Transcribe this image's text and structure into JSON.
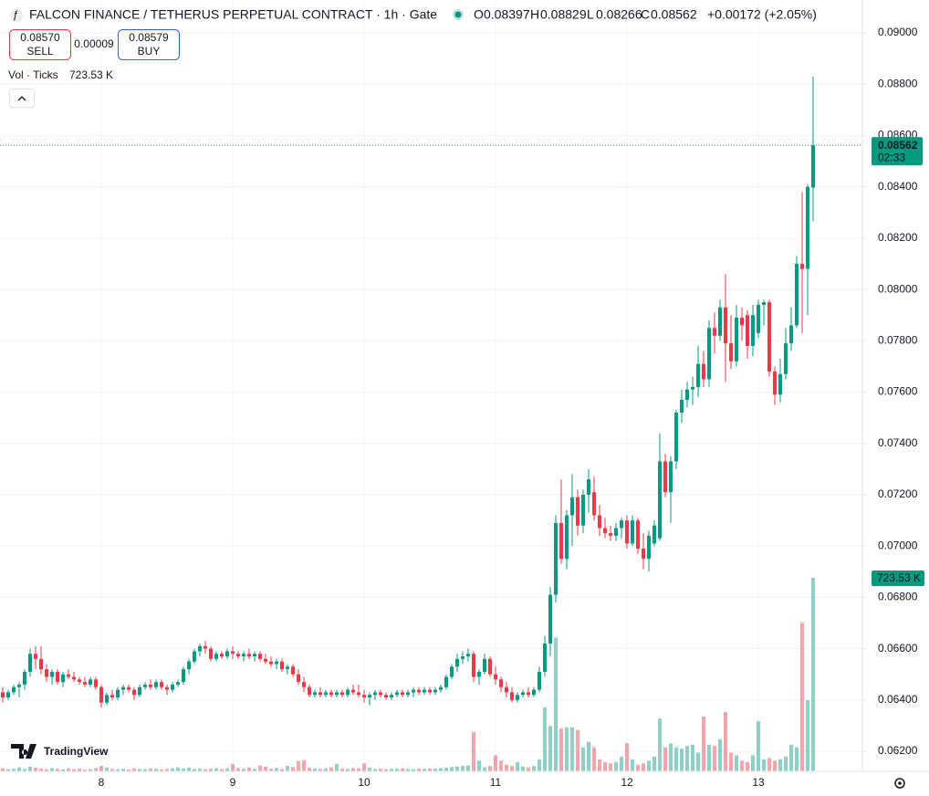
{
  "chart_data": {
    "type": "candlestick",
    "title": "FALCON FINANCE / TETHERUS PERPETUAL CONTRACT · 1h · Gate",
    "ohlc_labels": [
      "O",
      "H",
      "L",
      "C"
    ],
    "change": "+0.00172 (+2.05%)",
    "sell": {
      "price": "0.08570",
      "label": "SELL"
    },
    "spread": "0.00009",
    "buy": {
      "price": "0.08579",
      "label": "BUY"
    },
    "countdown": "02:33",
    "watermark": "TradingView",
    "up_color": "#089981",
    "down_color": "#f23645",
    "grid": true,
    "ylim": [
      0.06122,
      0.09128
    ],
    "yticks": [
      {
        "value": 0.062,
        "label": "0.06200"
      },
      {
        "value": 0.064,
        "label": "0.06400"
      },
      {
        "value": 0.066,
        "label": "0.06600"
      },
      {
        "value": 0.068,
        "label": "0.06800"
      },
      {
        "value": 0.07,
        "label": "0.07000"
      },
      {
        "value": 0.072,
        "label": "0.07200"
      },
      {
        "value": 0.074,
        "label": "0.07400"
      },
      {
        "value": 0.076,
        "label": "0.07600"
      },
      {
        "value": 0.078,
        "label": "0.07800"
      },
      {
        "value": 0.08,
        "label": "0.08000"
      },
      {
        "value": 0.082,
        "label": "0.08200"
      },
      {
        "value": 0.084,
        "label": "0.08400"
      },
      {
        "value": 0.086,
        "label": "0.08600"
      },
      {
        "value": 0.088,
        "label": "0.08800"
      },
      {
        "value": 0.09,
        "label": "0.09000"
      }
    ],
    "categories": [
      null,
      null,
      null,
      null,
      null,
      null,
      null,
      null,
      null,
      null,
      null,
      null,
      null,
      null,
      null,
      null,
      null,
      null,
      "8",
      null,
      null,
      null,
      null,
      null,
      null,
      null,
      null,
      null,
      null,
      null,
      null,
      null,
      null,
      null,
      null,
      null,
      null,
      null,
      null,
      null,
      null,
      null,
      "9",
      null,
      null,
      null,
      null,
      null,
      null,
      null,
      null,
      null,
      null,
      null,
      null,
      null,
      null,
      null,
      null,
      null,
      null,
      null,
      null,
      null,
      null,
      null,
      "10",
      null,
      null,
      null,
      null,
      null,
      null,
      null,
      null,
      null,
      null,
      null,
      null,
      null,
      null,
      null,
      null,
      null,
      null,
      null,
      null,
      null,
      null,
      null,
      "11",
      null,
      null,
      null,
      null,
      null,
      null,
      null,
      null,
      null,
      null,
      null,
      null,
      null,
      null,
      null,
      null,
      null,
      null,
      null,
      null,
      null,
      null,
      null,
      "12",
      null,
      null,
      null,
      null,
      null,
      null,
      null,
      null,
      null,
      null,
      null,
      null,
      null,
      null,
      null,
      null,
      null,
      null,
      null,
      null,
      null,
      null,
      null,
      "13",
      null,
      null,
      null,
      null,
      null,
      null,
      null,
      null,
      null,
      null
    ],
    "candles": [
      [
        0.0643,
        0.0645,
        0.0639,
        0.0641
      ],
      [
        0.0641,
        0.0644,
        0.064,
        0.0643
      ],
      [
        0.0643,
        0.0646,
        0.0642,
        0.0645
      ],
      [
        0.0645,
        0.0647,
        0.0641,
        0.0646
      ],
      [
        0.0646,
        0.0652,
        0.0644,
        0.0651
      ],
      [
        0.0651,
        0.066,
        0.0649,
        0.0658
      ],
      [
        0.0658,
        0.0661,
        0.0652,
        0.0656
      ],
      [
        0.0656,
        0.0661,
        0.065,
        0.0652
      ],
      [
        0.0652,
        0.0654,
        0.0647,
        0.0649
      ],
      [
        0.0649,
        0.0652,
        0.0646,
        0.0651
      ],
      [
        0.0651,
        0.0652,
        0.0646,
        0.0647
      ],
      [
        0.0647,
        0.0651,
        0.0645,
        0.065
      ],
      [
        0.065,
        0.0652,
        0.0648,
        0.0649
      ],
      [
        0.0649,
        0.0651,
        0.0647,
        0.0648
      ],
      [
        0.0648,
        0.0649,
        0.0646,
        0.0647
      ],
      [
        0.0647,
        0.0649,
        0.0645,
        0.0646
      ],
      [
        0.0646,
        0.0649,
        0.0645,
        0.0648
      ],
      [
        0.0648,
        0.0649,
        0.0644,
        0.0645
      ],
      [
        0.0645,
        0.0646,
        0.0637,
        0.0639
      ],
      [
        0.0639,
        0.0643,
        0.0638,
        0.0642
      ],
      [
        0.0642,
        0.0644,
        0.064,
        0.0641
      ],
      [
        0.0641,
        0.0645,
        0.064,
        0.0644
      ],
      [
        0.0644,
        0.0646,
        0.0642,
        0.0645
      ],
      [
        0.0645,
        0.0646,
        0.0643,
        0.0644
      ],
      [
        0.0644,
        0.0645,
        0.064,
        0.0642
      ],
      [
        0.0642,
        0.0646,
        0.0641,
        0.0645
      ],
      [
        0.0645,
        0.0647,
        0.0644,
        0.0646
      ],
      [
        0.0646,
        0.0648,
        0.0644,
        0.0645
      ],
      [
        0.0645,
        0.0648,
        0.0644,
        0.0647
      ],
      [
        0.0647,
        0.0648,
        0.0644,
        0.0645
      ],
      [
        0.0645,
        0.0646,
        0.0642,
        0.0644
      ],
      [
        0.0644,
        0.0647,
        0.0643,
        0.0646
      ],
      [
        0.0646,
        0.0648,
        0.0645,
        0.0647
      ],
      [
        0.0647,
        0.0653,
        0.0646,
        0.0652
      ],
      [
        0.0652,
        0.0656,
        0.065,
        0.0655
      ],
      [
        0.0655,
        0.066,
        0.0654,
        0.0659
      ],
      [
        0.0659,
        0.0662,
        0.0657,
        0.0661
      ],
      [
        0.0661,
        0.0663,
        0.0658,
        0.066
      ],
      [
        0.066,
        0.0661,
        0.0655,
        0.0656
      ],
      [
        0.0656,
        0.0659,
        0.0655,
        0.0658
      ],
      [
        0.0658,
        0.0659,
        0.0656,
        0.0657
      ],
      [
        0.0657,
        0.066,
        0.0656,
        0.0659
      ],
      [
        0.0659,
        0.0661,
        0.0656,
        0.0658
      ],
      [
        0.0658,
        0.0659,
        0.0656,
        0.0657
      ],
      [
        0.0657,
        0.0659,
        0.0655,
        0.0658
      ],
      [
        0.0658,
        0.066,
        0.0656,
        0.0657
      ],
      [
        0.0657,
        0.0659,
        0.0655,
        0.0658
      ],
      [
        0.0658,
        0.0659,
        0.0655,
        0.0656
      ],
      [
        0.0656,
        0.0658,
        0.0654,
        0.0655
      ],
      [
        0.0655,
        0.0657,
        0.0653,
        0.0654
      ],
      [
        0.0654,
        0.0656,
        0.0652,
        0.0655
      ],
      [
        0.0655,
        0.0656,
        0.0651,
        0.0652
      ],
      [
        0.0652,
        0.0654,
        0.065,
        0.0653
      ],
      [
        0.0653,
        0.0654,
        0.0649,
        0.065
      ],
      [
        0.065,
        0.0652,
        0.0646,
        0.0647
      ],
      [
        0.0647,
        0.0649,
        0.0643,
        0.0645
      ],
      [
        0.0645,
        0.0646,
        0.0641,
        0.0642
      ],
      [
        0.0642,
        0.0644,
        0.0641,
        0.0643
      ],
      [
        0.0643,
        0.0645,
        0.0641,
        0.0642
      ],
      [
        0.0642,
        0.0644,
        0.0641,
        0.0643
      ],
      [
        0.0643,
        0.0644,
        0.0641,
        0.0642
      ],
      [
        0.0642,
        0.0644,
        0.0641,
        0.0643
      ],
      [
        0.0643,
        0.0644,
        0.0641,
        0.0642
      ],
      [
        0.0642,
        0.0645,
        0.0641,
        0.0644
      ],
      [
        0.0644,
        0.0646,
        0.0642,
        0.0643
      ],
      [
        0.0643,
        0.0646,
        0.0641,
        0.0642
      ],
      [
        0.0642,
        0.0644,
        0.0639,
        0.0641
      ],
      [
        0.0641,
        0.0643,
        0.0638,
        0.0642
      ],
      [
        0.0642,
        0.0644,
        0.064,
        0.0643
      ],
      [
        0.0643,
        0.0644,
        0.0641,
        0.0642
      ],
      [
        0.0642,
        0.0643,
        0.064,
        0.0641
      ],
      [
        0.0641,
        0.0643,
        0.064,
        0.0642
      ],
      [
        0.0642,
        0.0644,
        0.0641,
        0.0643
      ],
      [
        0.0643,
        0.0644,
        0.0641,
        0.0642
      ],
      [
        0.0642,
        0.0644,
        0.0641,
        0.0643
      ],
      [
        0.0643,
        0.0645,
        0.0641,
        0.0644
      ],
      [
        0.0644,
        0.0645,
        0.0642,
        0.0643
      ],
      [
        0.0643,
        0.0645,
        0.0642,
        0.0644
      ],
      [
        0.0644,
        0.0645,
        0.0642,
        0.0643
      ],
      [
        0.0643,
        0.0645,
        0.0642,
        0.0644
      ],
      [
        0.0644,
        0.0646,
        0.0643,
        0.0645
      ],
      [
        0.0645,
        0.065,
        0.0644,
        0.0649
      ],
      [
        0.0649,
        0.0654,
        0.0648,
        0.0653
      ],
      [
        0.0653,
        0.0658,
        0.0651,
        0.0656
      ],
      [
        0.0656,
        0.0659,
        0.0654,
        0.0657
      ],
      [
        0.0657,
        0.066,
        0.0655,
        0.0658
      ],
      [
        0.0658,
        0.0659,
        0.0647,
        0.0649
      ],
      [
        0.0649,
        0.0652,
        0.0646,
        0.0651
      ],
      [
        0.0651,
        0.0658,
        0.065,
        0.0656
      ],
      [
        0.0656,
        0.0657,
        0.0649,
        0.065
      ],
      [
        0.065,
        0.0653,
        0.0646,
        0.0648
      ],
      [
        0.0648,
        0.0649,
        0.0643,
        0.0645
      ],
      [
        0.0645,
        0.0647,
        0.0641,
        0.0643
      ],
      [
        0.0643,
        0.0645,
        0.0639,
        0.064
      ],
      [
        0.064,
        0.0643,
        0.0639,
        0.0642
      ],
      [
        0.0642,
        0.0644,
        0.0641,
        0.0643
      ],
      [
        0.0643,
        0.0645,
        0.0641,
        0.0642
      ],
      [
        0.0642,
        0.0645,
        0.0641,
        0.0644
      ],
      [
        0.0644,
        0.0653,
        0.0643,
        0.0651
      ],
      [
        0.0651,
        0.0665,
        0.0649,
        0.0662
      ],
      [
        0.0662,
        0.0684,
        0.0657,
        0.0681
      ],
      [
        0.0681,
        0.0712,
        0.0678,
        0.0709
      ],
      [
        0.0709,
        0.0726,
        0.0693,
        0.0695
      ],
      [
        0.0695,
        0.0714,
        0.0691,
        0.0712
      ],
      [
        0.0712,
        0.0728,
        0.07,
        0.0719
      ],
      [
        0.0719,
        0.0722,
        0.0704,
        0.0708
      ],
      [
        0.0708,
        0.0722,
        0.0705,
        0.072
      ],
      [
        0.072,
        0.073,
        0.0713,
        0.0726
      ],
      [
        0.0721,
        0.0727,
        0.071,
        0.0712
      ],
      [
        0.0712,
        0.0716,
        0.0704,
        0.0707
      ],
      [
        0.0707,
        0.0711,
        0.0703,
        0.0705
      ],
      [
        0.0705,
        0.0708,
        0.0702,
        0.0704
      ],
      [
        0.0704,
        0.0709,
        0.0702,
        0.0707
      ],
      [
        0.0707,
        0.0711,
        0.0703,
        0.071
      ],
      [
        0.071,
        0.0712,
        0.0699,
        0.0701
      ],
      [
        0.0701,
        0.0712,
        0.07,
        0.071
      ],
      [
        0.071,
        0.0711,
        0.0697,
        0.0699
      ],
      [
        0.0699,
        0.0705,
        0.0691,
        0.0695
      ],
      [
        0.0695,
        0.0706,
        0.069,
        0.0704
      ],
      [
        0.0701,
        0.071,
        0.07,
        0.0708
      ],
      [
        0.0703,
        0.0744,
        0.0702,
        0.0733
      ],
      [
        0.0733,
        0.0736,
        0.0719,
        0.0721
      ],
      [
        0.0721,
        0.0735,
        0.0709,
        0.0733
      ],
      [
        0.0733,
        0.0753,
        0.073,
        0.0752
      ],
      [
        0.0752,
        0.0761,
        0.0748,
        0.0757
      ],
      [
        0.0757,
        0.0764,
        0.0754,
        0.0761
      ],
      [
        0.0761,
        0.0766,
        0.0755,
        0.0762
      ],
      [
        0.0762,
        0.0778,
        0.0758,
        0.0771
      ],
      [
        0.0771,
        0.0776,
        0.0762,
        0.0765
      ],
      [
        0.0765,
        0.0788,
        0.0762,
        0.0785
      ],
      [
        0.0785,
        0.0791,
        0.0775,
        0.0782
      ],
      [
        0.0782,
        0.0796,
        0.078,
        0.0793
      ],
      [
        0.0793,
        0.0806,
        0.0764,
        0.0779
      ],
      [
        0.0779,
        0.079,
        0.0769,
        0.0772
      ],
      [
        0.0772,
        0.0794,
        0.077,
        0.0789
      ],
      [
        0.0789,
        0.0793,
        0.078,
        0.0786
      ],
      [
        0.079,
        0.0792,
        0.0773,
        0.0778
      ],
      [
        0.0778,
        0.0794,
        0.0774,
        0.079
      ],
      [
        0.0783,
        0.0796,
        0.0781,
        0.0794
      ],
      [
        0.0794,
        0.0796,
        0.0786,
        0.0795
      ],
      [
        0.0795,
        0.0796,
        0.0766,
        0.0768
      ],
      [
        0.0768,
        0.077,
        0.0755,
        0.0759
      ],
      [
        0.0759,
        0.0773,
        0.0756,
        0.0767
      ],
      [
        0.0767,
        0.0785,
        0.0765,
        0.0779
      ],
      [
        0.0779,
        0.0793,
        0.0776,
        0.0786
      ],
      [
        0.0786,
        0.0813,
        0.0785,
        0.081
      ],
      [
        0.081,
        0.0838,
        0.0783,
        0.0808
      ],
      [
        0.0808,
        0.0841,
        0.079,
        0.084
      ],
      [
        0.08397,
        0.08829,
        0.08266,
        0.08562
      ]
    ],
    "volume": {
      "name": "Vol · Ticks",
      "label": "723.53 K",
      "values": [
        12,
        8,
        10,
        15,
        9,
        18,
        14,
        10,
        8,
        12,
        9,
        7,
        11,
        8,
        10,
        6,
        9,
        12,
        20,
        14,
        9,
        8,
        10,
        7,
        12,
        9,
        8,
        11,
        10,
        7,
        9,
        12,
        15,
        10,
        14,
        9,
        11,
        8,
        10,
        12,
        9,
        11,
        28,
        12,
        10,
        14,
        9,
        22,
        18,
        10,
        12,
        9,
        20,
        16,
        38,
        42,
        14,
        10,
        9,
        12,
        15,
        28,
        10,
        9,
        12,
        11,
        30,
        14,
        9,
        10,
        8,
        9,
        10,
        12,
        9,
        8,
        10,
        9,
        11,
        10,
        12,
        14,
        16,
        18,
        20,
        22,
        147,
        40,
        15,
        20,
        60,
        40,
        25,
        20,
        35,
        18,
        15,
        20,
        45,
        239,
        170,
        500,
        160,
        165,
        165,
        155,
        90,
        110,
        90,
        45,
        35,
        30,
        35,
        55,
        105,
        45,
        25,
        30,
        40,
        55,
        198,
        90,
        105,
        90,
        85,
        95,
        100,
        70,
        205,
        100,
        95,
        120,
        222,
        70,
        60,
        40,
        35,
        60,
        188,
        45,
        50,
        40,
        45,
        55,
        100,
        90,
        556,
        266,
        723.53
      ]
    }
  }
}
